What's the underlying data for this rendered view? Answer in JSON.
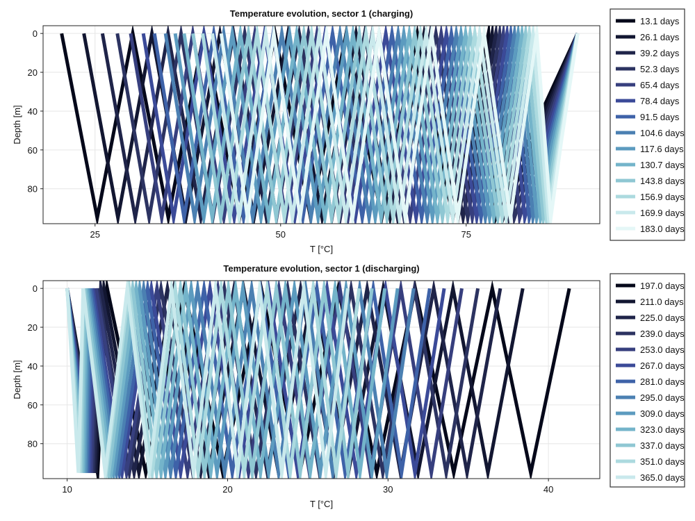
{
  "chart_data": [
    {
      "type": "line",
      "title": "Temperature evolution, sector 1 (charging)",
      "xlabel": "T [°C]",
      "ylabel": "Depth [m]",
      "xlim": [
        18,
        93
      ],
      "ylim": [
        -4,
        98
      ],
      "y_inverted": true,
      "xticks": [
        25,
        50,
        75
      ],
      "yticks": [
        0,
        20,
        40,
        60,
        80
      ],
      "grid": true,
      "legend_position": "right",
      "colors": [
        "#05081a",
        "#121631",
        "#1f2449",
        "#2c3361",
        "#373f7e",
        "#3b4a98",
        "#3e62a8",
        "#4b80b2",
        "#5c9bbf",
        "#74b4ca",
        "#8fc7d3",
        "#acdadf",
        "#c9e9ec",
        "#e4f7f7"
      ],
      "series_names": [
        "13.1 days",
        "26.1 days",
        "39.2 days",
        "52.3 days",
        "65.4 days",
        "78.4 days",
        "91.5 days",
        "104.6 days",
        "117.6 days",
        "130.7 days",
        "143.8 days",
        "156.9 days",
        "169.9 days",
        "183.0 days"
      ],
      "depth_profile": {
        "depth": [
          0,
          95
        ],
        "zigzags_per_series": 12,
        "start_temperature": [
          20.5,
          23.5,
          26.0,
          28.0,
          29.8,
          31.5,
          33.0,
          34.5,
          35.8,
          37.0,
          38.2,
          39.5,
          40.8,
          42.0
        ],
        "end_temperature": [
          78.0,
          78.5,
          79.0,
          79.5,
          80.0,
          80.5,
          81.0,
          81.5,
          82.0,
          82.5,
          83.0,
          83.5,
          84.0,
          84.5
        ]
      },
      "hot_return_leg": {
        "bottom_temperature": [
          79.0,
          80.0,
          80.8,
          81.5,
          82.2,
          82.9,
          83.5,
          84.0,
          84.5,
          85.0,
          85.4,
          85.8,
          86.1,
          86.4
        ],
        "top_temperature": 90.0
      }
    },
    {
      "type": "line",
      "title": "Temperature evolution, sector 1 (discharging)",
      "xlabel": "T [°C]",
      "ylabel": "Depth [m]",
      "xlim": [
        8.5,
        43.2
      ],
      "ylim": [
        -4,
        98
      ],
      "y_inverted": true,
      "xticks": [
        10,
        20,
        30,
        40
      ],
      "yticks": [
        0,
        20,
        40,
        60,
        80
      ],
      "grid": true,
      "legend_position": "right",
      "colors": [
        "#05081a",
        "#121631",
        "#1f2449",
        "#2c3361",
        "#373f7e",
        "#3b4a98",
        "#3e62a8",
        "#4b80b2",
        "#5c9bbf",
        "#74b4ca",
        "#8fc7d3",
        "#acdadf",
        "#c9e9ec",
        "#e4f7f7"
      ],
      "series_names": [
        "197.0 days",
        "211.0 days",
        "225.0 days",
        "239.0 days",
        "253.0 days",
        "267.0 days",
        "281.0 days",
        "295.0 days",
        "309.0 days",
        "323.0 days",
        "337.0 days",
        "351.0 days",
        "365.0 days"
      ],
      "depth_profile": {
        "depth": [
          0,
          95
        ],
        "zigzags_per_series": 12,
        "start_temperature": [
          41.3,
          38.4,
          37.0,
          35.6,
          34.6,
          33.5,
          32.6,
          31.6,
          30.6,
          29.8,
          29.0,
          28.2,
          27.5
        ],
        "end_temperature": [
          12.5,
          12.3,
          12.1,
          11.9,
          11.8,
          11.6,
          11.5,
          11.4,
          11.3,
          11.2,
          11.1,
          11.0,
          11.0
        ]
      },
      "cold_return_leg": {
        "bottom_temperature": [
          11.9,
          11.8,
          11.7,
          11.6,
          11.5,
          11.4,
          11.3,
          11.2,
          11.1,
          11.0,
          10.9,
          10.8,
          10.7
        ],
        "top_temperature": 10.0
      }
    }
  ]
}
